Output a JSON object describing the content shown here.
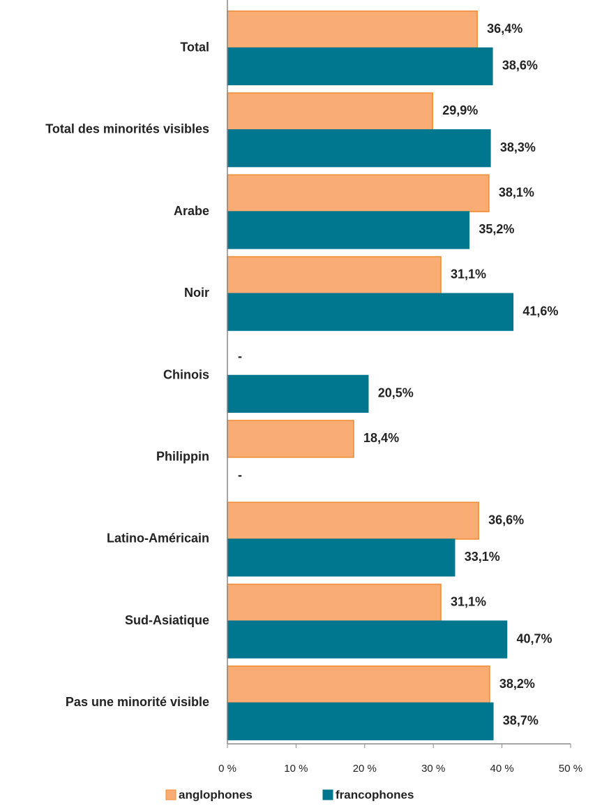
{
  "chart_data": {
    "type": "hbar",
    "categories": [
      "Total",
      "Total des minorités visibles",
      "Arabe",
      "Noir",
      "Chinois",
      "Philippin",
      "Latino-Américain",
      "Sud-Asiatique",
      "Pas une minorité visible"
    ],
    "series": [
      {
        "name": "anglophones",
        "color": "#f9ad74",
        "values": [
          36.4,
          29.9,
          38.1,
          31.1,
          null,
          18.4,
          36.6,
          31.1,
          38.2
        ],
        "value_labels": [
          "36,4%",
          "29,9%",
          "38,1%",
          "31,1%",
          "-",
          "18,4%",
          "36,6%",
          "31,1%",
          "38,2%"
        ]
      },
      {
        "name": "francophones",
        "color": "#00768f",
        "values": [
          38.6,
          38.3,
          35.2,
          41.6,
          20.5,
          null,
          33.1,
          40.7,
          38.7
        ],
        "value_labels": [
          "38,6%",
          "38,3%",
          "35,2%",
          "41,6%",
          "20,5%",
          "-",
          "33,1%",
          "40,7%",
          "38,7%"
        ]
      }
    ],
    "xlim": [
      0,
      50
    ],
    "xticks": [
      {
        "value": 0,
        "label": "0 %"
      },
      {
        "value": 10,
        "label": "10 %"
      },
      {
        "value": 20,
        "label": "20 %"
      },
      {
        "value": 30,
        "label": "30 %"
      },
      {
        "value": 40,
        "label": "40 %"
      },
      {
        "value": 50,
        "label": "50 %"
      }
    ],
    "legend": "bottom"
  }
}
